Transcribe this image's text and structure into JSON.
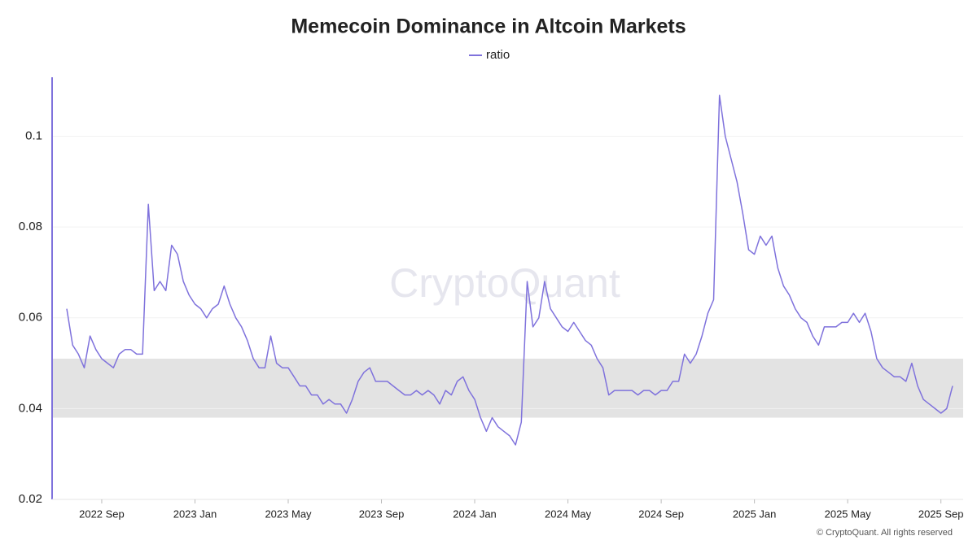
{
  "chart_data": {
    "type": "line",
    "title": "Memecoin Dominance in Altcoin Markets",
    "categories": [
      null,
      null,
      null,
      null,
      null,
      null,
      "2022 Sep",
      null,
      null,
      null,
      null,
      null,
      null,
      null,
      null,
      null,
      null,
      null,
      null,
      null,
      null,
      null,
      "2023 Jan",
      null,
      null,
      null,
      null,
      null,
      null,
      null,
      null,
      null,
      null,
      null,
      null,
      null,
      null,
      null,
      "2023 May",
      null,
      null,
      null,
      null,
      null,
      null,
      null,
      null,
      null,
      null,
      null,
      null,
      null,
      null,
      null,
      "2023 Sep",
      null,
      null,
      null,
      null,
      null,
      null,
      null,
      null,
      null,
      null,
      null,
      null,
      null,
      null,
      null,
      "2024 Jan",
      null,
      null,
      null,
      null,
      null,
      null,
      null,
      null,
      null,
      null,
      null,
      null,
      null,
      null,
      null,
      "2024 May",
      null,
      null,
      null,
      null,
      null,
      null,
      null,
      null,
      null,
      null,
      null,
      null,
      null,
      null,
      null,
      "2024 Sep",
      null,
      null,
      null,
      null,
      null,
      null,
      null,
      null,
      null,
      null,
      null,
      null,
      null,
      null,
      null,
      "2025 Jan",
      null,
      null,
      null,
      null,
      null,
      null,
      null,
      null,
      null,
      null,
      null,
      null,
      null,
      null,
      null,
      "2025 May",
      null,
      null,
      null,
      null,
      null,
      null,
      null,
      null,
      null,
      null,
      null,
      null,
      null,
      null,
      null,
      "2025 Sep",
      null,
      null
    ],
    "series": [
      {
        "name": "ratio",
        "color": "#7f72dc",
        "values": [
          0.062,
          0.054,
          0.052,
          0.049,
          0.056,
          0.053,
          0.051,
          0.05,
          0.049,
          0.052,
          0.053,
          0.053,
          0.052,
          0.052,
          0.085,
          0.066,
          0.068,
          0.066,
          0.076,
          0.074,
          0.068,
          0.065,
          0.063,
          0.062,
          0.06,
          0.062,
          0.063,
          0.067,
          0.063,
          0.06,
          0.058,
          0.055,
          0.051,
          0.049,
          0.049,
          0.056,
          0.05,
          0.049,
          0.049,
          0.047,
          0.045,
          0.045,
          0.043,
          0.043,
          0.041,
          0.042,
          0.041,
          0.041,
          0.039,
          0.042,
          0.046,
          0.048,
          0.049,
          0.046,
          0.046,
          0.046,
          0.045,
          0.044,
          0.043,
          0.043,
          0.044,
          0.043,
          0.044,
          0.043,
          0.041,
          0.044,
          0.043,
          0.046,
          0.047,
          0.044,
          0.042,
          0.038,
          0.035,
          0.038,
          0.036,
          0.035,
          0.034,
          0.032,
          0.037,
          0.068,
          0.058,
          0.06,
          0.068,
          0.062,
          0.06,
          0.058,
          0.057,
          0.059,
          0.057,
          0.055,
          0.054,
          0.051,
          0.049,
          0.043,
          0.044,
          0.044,
          0.044,
          0.044,
          0.043,
          0.044,
          0.044,
          0.043,
          0.044,
          0.044,
          0.046,
          0.046,
          0.052,
          0.05,
          0.052,
          0.056,
          0.061,
          0.064,
          0.109,
          0.1,
          0.095,
          0.09,
          0.083,
          0.075,
          0.074,
          0.078,
          0.076,
          0.078,
          0.071,
          0.067,
          0.065,
          0.062,
          0.06,
          0.059,
          0.056,
          0.054,
          0.058,
          0.058,
          0.058,
          0.059,
          0.059,
          0.061,
          0.059,
          0.061,
          0.057,
          0.051,
          0.049,
          0.048,
          0.047,
          0.047,
          0.046,
          0.05,
          0.045,
          0.042,
          0.041,
          0.04,
          0.039,
          0.04,
          0.045
        ]
      }
    ],
    "ylim": [
      0.02,
      0.113
    ],
    "yticks": [
      0.02,
      0.04,
      0.06,
      0.08,
      0.1
    ],
    "grid": true,
    "band": [
      0.038,
      0.051
    ],
    "band_color": "#e3e3e3",
    "watermark": "CryptoQuant",
    "footer": "© CryptoQuant. All rights reserved"
  }
}
